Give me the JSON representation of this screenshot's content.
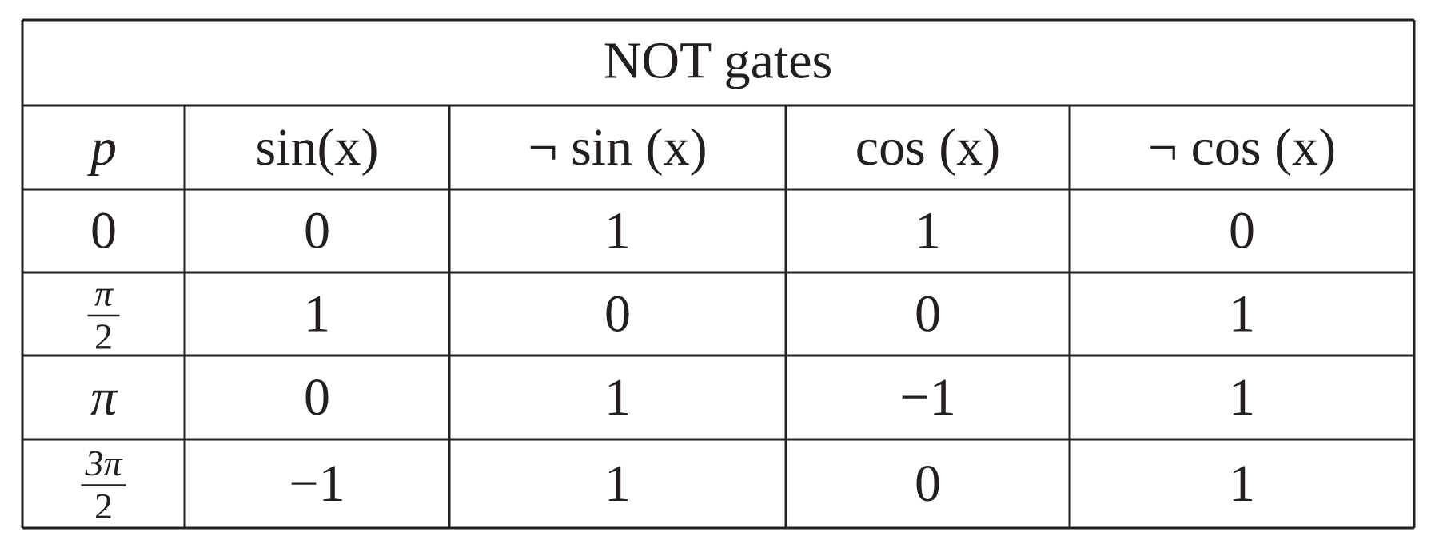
{
  "table": {
    "title": "NOT gates",
    "header": [
      "p",
      "sin(x)",
      "¬ sin (x)",
      "cos (x)",
      "¬ cos (x)"
    ],
    "rows": [
      [
        "0",
        "0",
        "1",
        "1",
        "0"
      ],
      [
        {
          "numerator": "π",
          "denominator": "2"
        },
        "1",
        "0",
        "0",
        "1"
      ],
      [
        "π",
        "0",
        "1",
        "−1",
        "1"
      ],
      [
        {
          "numerator": "3π",
          "denominator": "2"
        },
        "−1",
        "1",
        "0",
        "1"
      ]
    ]
  }
}
